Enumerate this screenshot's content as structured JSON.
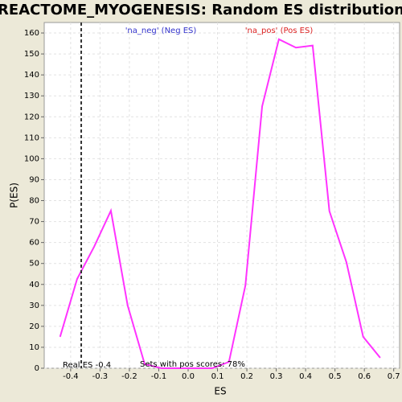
{
  "chart_data": {
    "type": "line",
    "title": "REACTOME_MYOGENESIS: Random ES distribution",
    "x_label": "ES",
    "y_label": "P(ES)",
    "x": [
      -0.436,
      -0.378,
      -0.32,
      -0.263,
      -0.206,
      -0.148,
      -0.091,
      -0.033,
      0.024,
      0.082,
      0.139,
      0.195,
      0.252,
      0.309,
      0.367,
      0.424,
      0.481,
      0.539,
      0.596,
      0.654
    ],
    "series": [
      {
        "name": "P(ES)",
        "color": "#ff33ff",
        "values": [
          15,
          42.6,
          58,
          75.2,
          30,
          2,
          0,
          0,
          0,
          0,
          3,
          39.5,
          125,
          157,
          153,
          154,
          75,
          50.6,
          15,
          5
        ]
      }
    ],
    "xlim": [
      -0.49,
      0.72
    ],
    "ylim": [
      0,
      165
    ],
    "xticks": [
      -0.4,
      -0.3,
      -0.2,
      -0.1,
      {
        "value": 0,
        "label": "0.0"
      },
      0.1,
      0.2,
      0.3,
      0.4,
      0.5,
      0.6,
      0.7
    ],
    "yticks": [
      0,
      10,
      20,
      30,
      40,
      50,
      60,
      70,
      80,
      90,
      100,
      110,
      120,
      130,
      140,
      150,
      160
    ],
    "grid": true,
    "legend_labels": [
      {
        "text": "'na_neg' (Neg ES)",
        "color": "#3333cc"
      },
      {
        "text": "'na_pos' (Pos ES)",
        "color": "#dd2222"
      }
    ],
    "real_es": -0.364,
    "real_es_label": "Real ES -0.4",
    "pos_scores_label": "Sets with pos scores: 78%"
  }
}
